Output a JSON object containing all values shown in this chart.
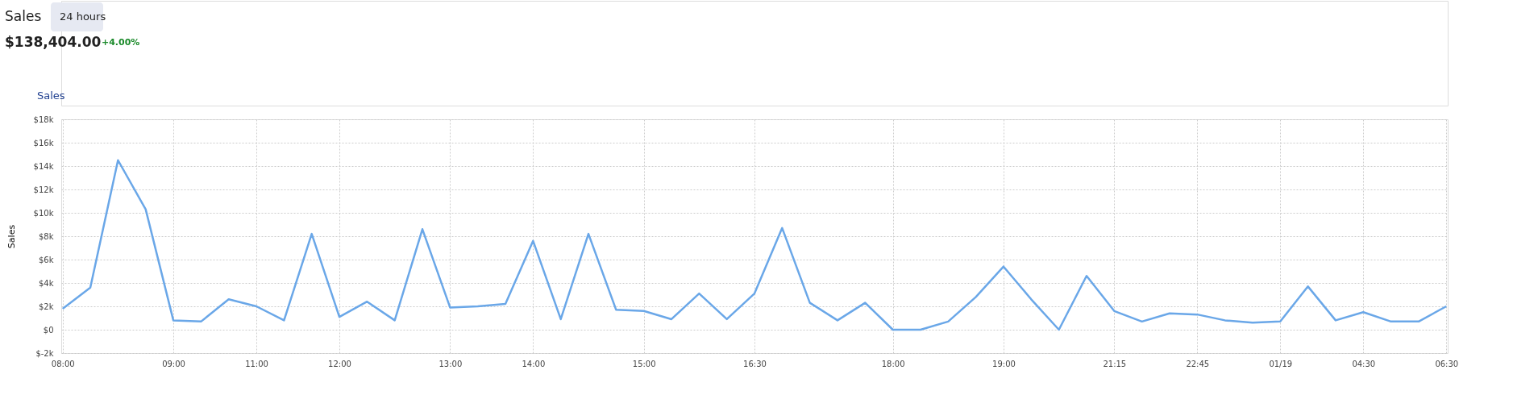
{
  "chart_data": {
    "type": "line",
    "title": "Sales",
    "subtitle": "24 hours",
    "ylabel": "Sales",
    "annotations": [
      "$138,404.00",
      "+4.00%",
      "Sales"
    ],
    "categories": [
      "08:00",
      null,
      null,
      null,
      "09:00",
      null,
      null,
      "11:00",
      null,
      null,
      "12:00",
      null,
      null,
      null,
      "13:00",
      null,
      null,
      "14:00",
      null,
      null,
      null,
      "15:00",
      null,
      null,
      null,
      "16:30",
      null,
      null,
      null,
      null,
      "18:00",
      null,
      null,
      null,
      "19:00",
      null,
      null,
      null,
      "21:15",
      null,
      null,
      "22:45",
      null,
      null,
      "01/19",
      null,
      null,
      "04:30",
      null,
      null,
      "06:30"
    ],
    "series": [
      {
        "color": "#6aa7e8",
        "values": [
          1800,
          3600,
          14500,
          10300,
          800,
          700,
          2600,
          2000,
          800,
          8200,
          1100,
          2400,
          800,
          8600,
          1900,
          2000,
          2200,
          7600,
          900,
          8200,
          1700,
          1600,
          900,
          3100,
          900,
          3100,
          8700,
          2300,
          800,
          2300,
          0,
          0,
          700,
          2800,
          5400,
          2600,
          0,
          4600,
          1600,
          700,
          1400,
          1300,
          800,
          600,
          700,
          3700,
          800,
          1500,
          700,
          700,
          2000
        ]
      }
    ],
    "ylim": [
      -2000,
      18000
    ],
    "yticks": [
      {
        "value": -2000,
        "label": "$-2k"
      },
      {
        "value": 0,
        "label": "$0"
      },
      {
        "value": 2000,
        "label": "$2k"
      },
      {
        "value": 4000,
        "label": "$4k"
      },
      {
        "value": 6000,
        "label": "$6k"
      },
      {
        "value": 8000,
        "label": "$8k"
      },
      {
        "value": 10000,
        "label": "$10k"
      },
      {
        "value": 12000,
        "label": "$12k"
      },
      {
        "value": 14000,
        "label": "$14k"
      },
      {
        "value": 16000,
        "label": "$16k"
      },
      {
        "value": 18000,
        "label": "$18k"
      }
    ],
    "grid": true
  }
}
